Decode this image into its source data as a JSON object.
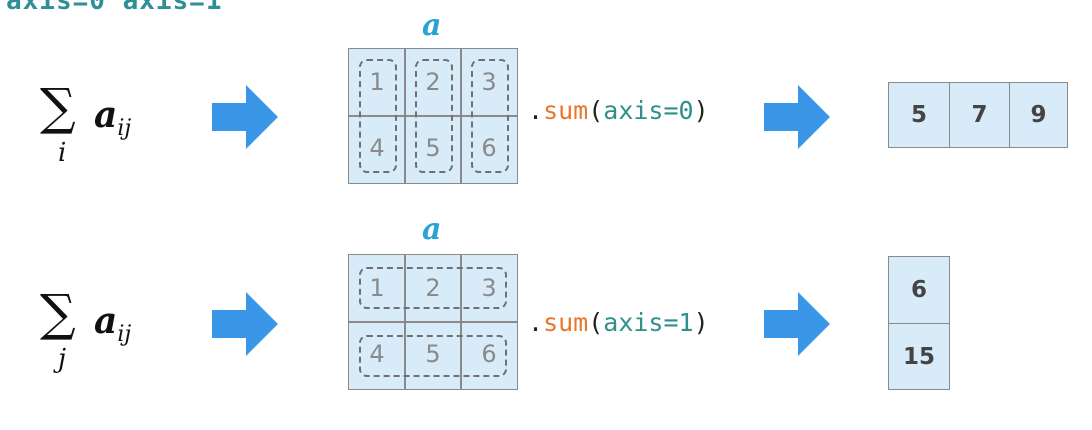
{
  "top_fragment": "axis=0 axis=1",
  "matrix_label": "a",
  "rows": [
    {
      "sum_index": "i",
      "term": "a",
      "term_sub": "ij",
      "matrix": [
        "1",
        "2",
        "3",
        "4",
        "5",
        "6"
      ],
      "code": {
        "dot": ".",
        "fn": "sum",
        "open": "(",
        "arg": "axis=0",
        "close": ")"
      },
      "result": [
        "5",
        "7",
        "9"
      ]
    },
    {
      "sum_index": "j",
      "term": "a",
      "term_sub": "ij",
      "matrix": [
        "1",
        "2",
        "3",
        "4",
        "5",
        "6"
      ],
      "code": {
        "dot": ".",
        "fn": "sum",
        "open": "(",
        "arg": "axis=1",
        "close": ")"
      },
      "result": [
        "6",
        "15"
      ]
    }
  ],
  "colors": {
    "arrow": "#3a97e8",
    "cell_fill": "#d7ecf8",
    "label": "#2aa3d4",
    "fn": "#e9762b",
    "arg": "#2f8f8a"
  }
}
